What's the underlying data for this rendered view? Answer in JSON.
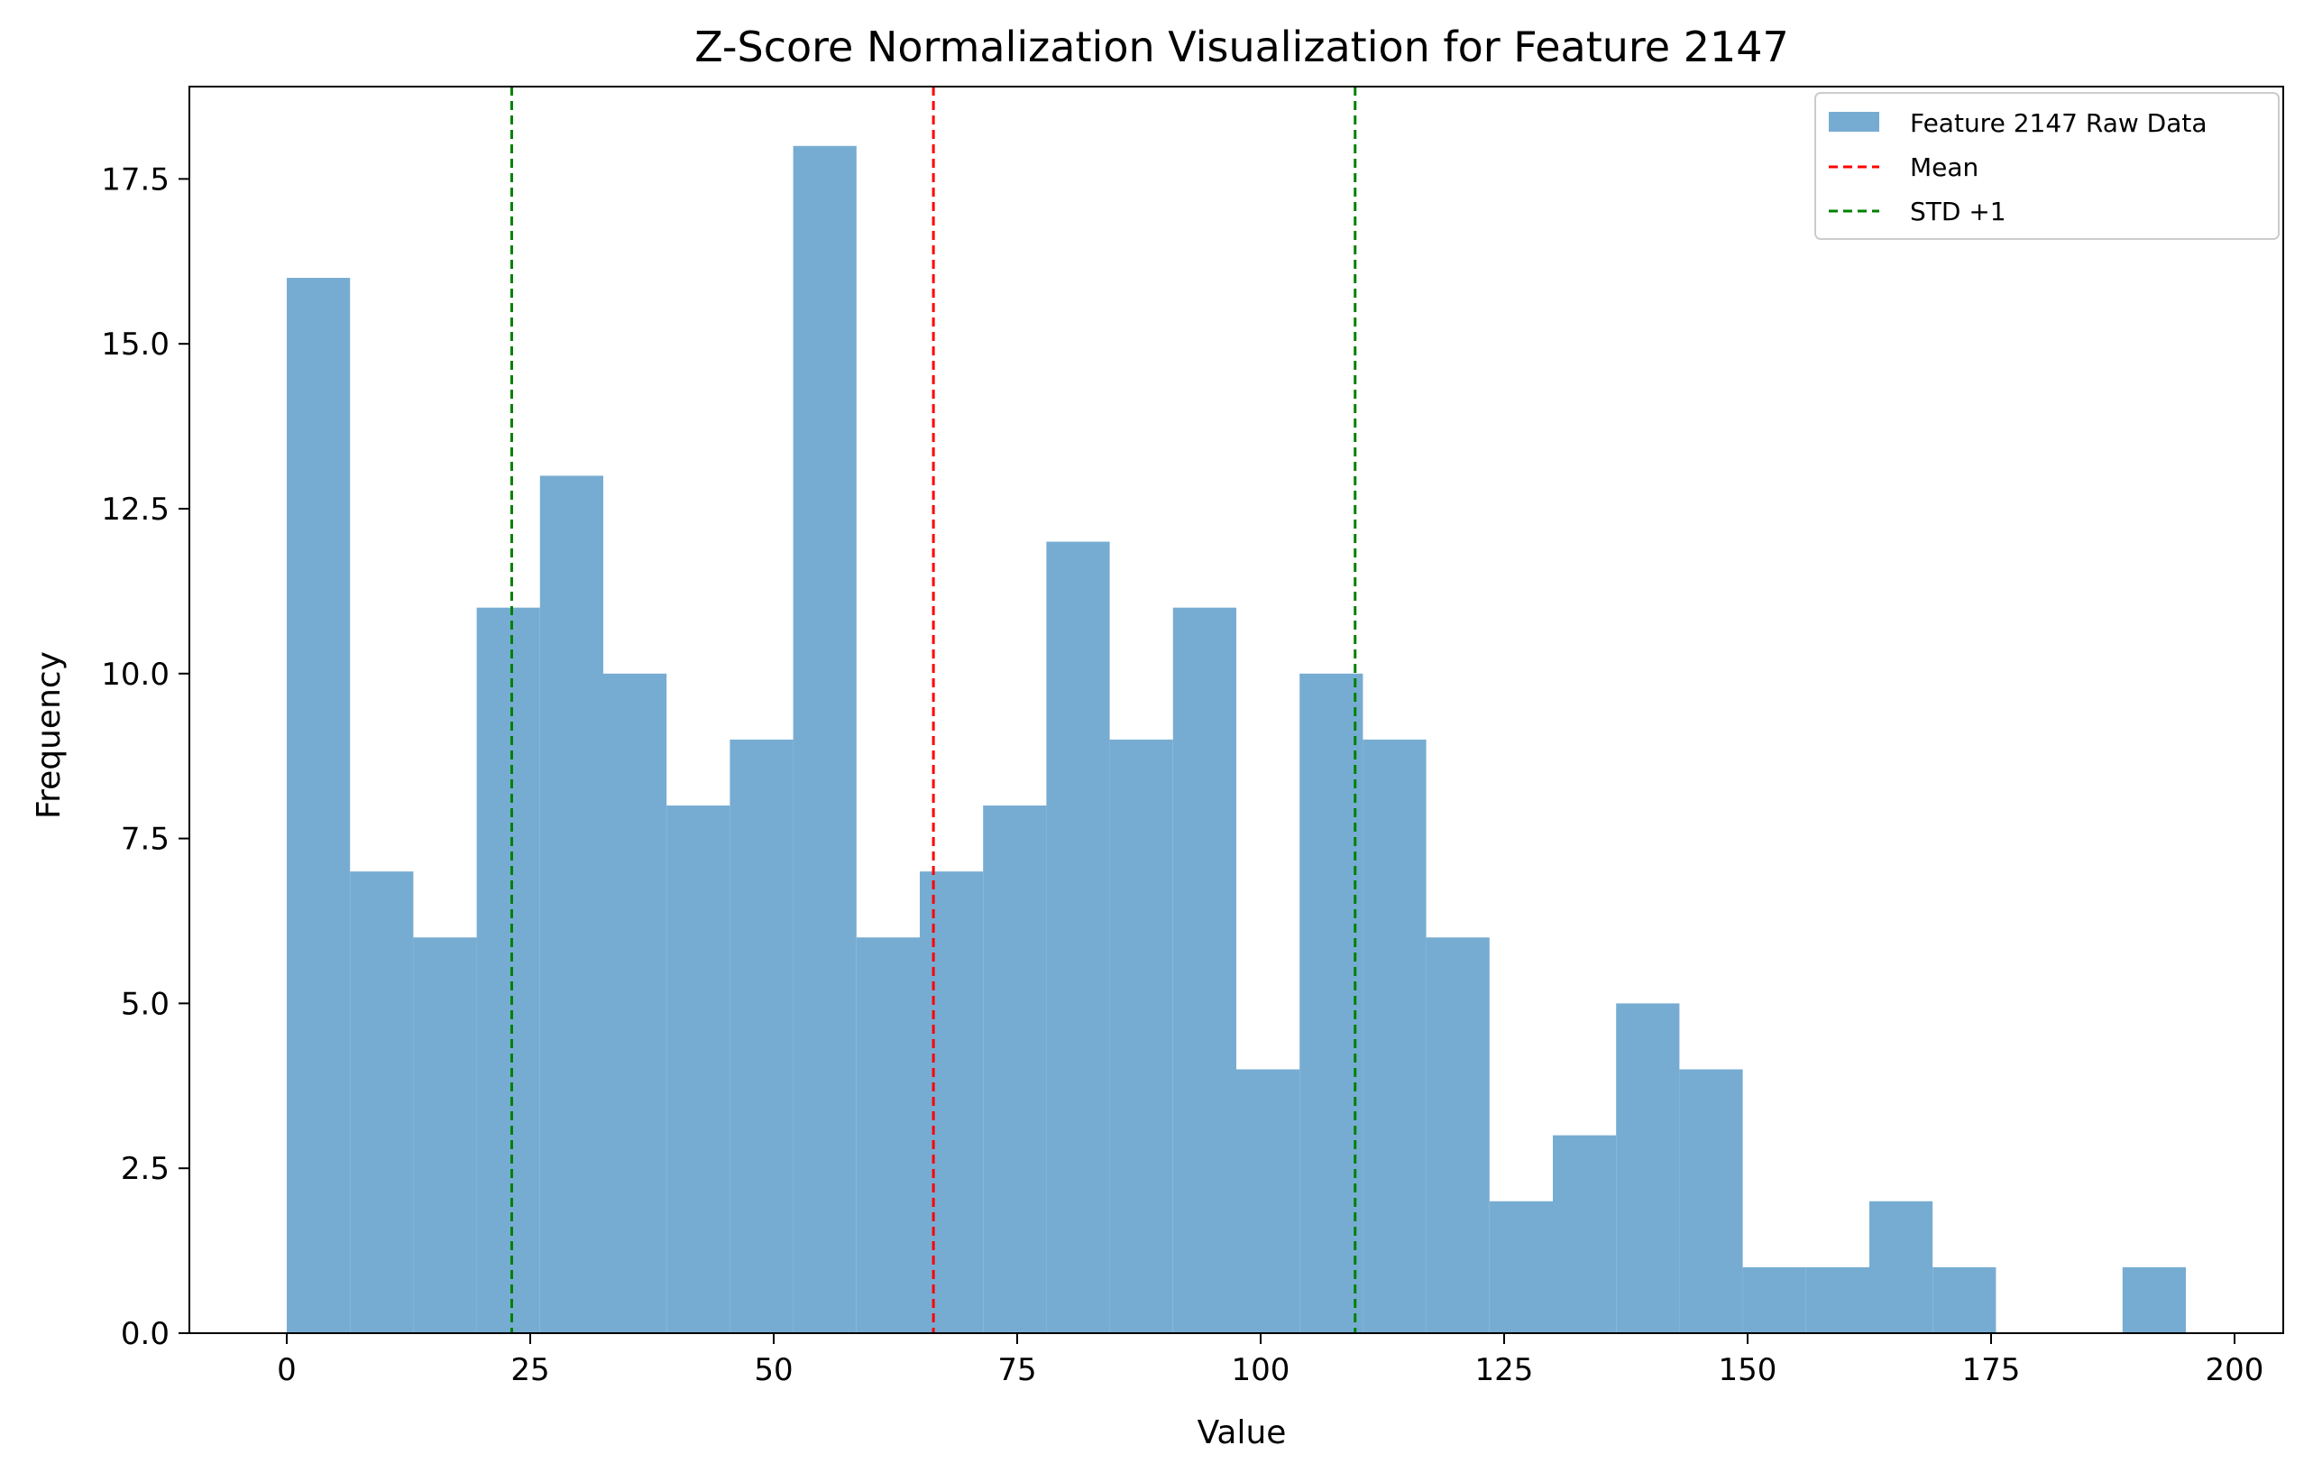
{
  "chart_data": {
    "type": "bar",
    "title": "Z-Score Normalization Visualization for Feature 2147",
    "xlabel": "Value",
    "ylabel": "Frequency",
    "xlim": [
      -10,
      205
    ],
    "ylim": [
      0,
      18.9
    ],
    "x_ticks": [
      0,
      25,
      50,
      75,
      100,
      125,
      150,
      175,
      200
    ],
    "x_tick_labels": [
      "0",
      "25",
      "50",
      "75",
      "100",
      "125",
      "150",
      "175",
      "200"
    ],
    "y_ticks": [
      0,
      2.5,
      5,
      7.5,
      10,
      12.5,
      15,
      17.5
    ],
    "y_tick_labels": [
      "0.0",
      "2.5",
      "5.0",
      "7.5",
      "10.0",
      "12.5",
      "15.0",
      "17.5"
    ],
    "grid": false,
    "legend_position": "top-right",
    "bins": {
      "start": 0,
      "width": 6.5,
      "counts": [
        16,
        7,
        6,
        11,
        13,
        10,
        8,
        9,
        18,
        6,
        7,
        8,
        12,
        9,
        11,
        4,
        10,
        9,
        6,
        2,
        3,
        5,
        4,
        1,
        1,
        2,
        1,
        0,
        0,
        1
      ]
    },
    "series": [
      {
        "name": "Feature 2147 Raw Data",
        "kind": "histogram",
        "color": "#77acd2"
      },
      {
        "name": "Mean",
        "kind": "vline",
        "x": 66.4,
        "color": "#ff0000",
        "style": "dashed"
      },
      {
        "name": "STD +1",
        "kind": "vline",
        "x": [
          23.1,
          109.7
        ],
        "color": "#008000",
        "style": "dashed"
      }
    ]
  }
}
